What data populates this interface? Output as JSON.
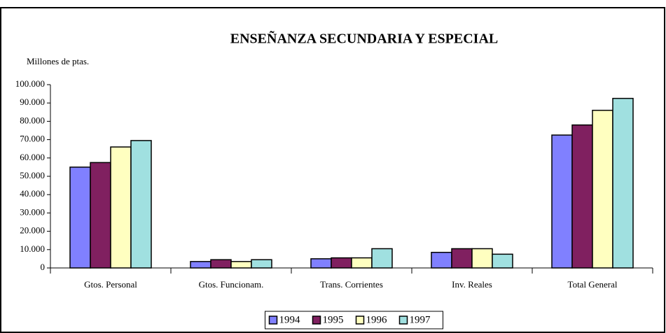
{
  "chart_data": {
    "type": "bar",
    "title": "ENSEÑANZA SECUNDARIA Y ESPECIAL",
    "y_label": "Millones de ptas.",
    "categories": [
      "Gtos. Personal",
      "Gtos. Funcionam.",
      "Trans. Corrientes",
      "Inv. Reales",
      "Total General"
    ],
    "series": [
      {
        "name": "1994",
        "color": "#8080ff",
        "values": [
          55000,
          3500,
          5000,
          8500,
          72500
        ]
      },
      {
        "name": "1995",
        "color": "#802060",
        "values": [
          57500,
          4500,
          5500,
          10500,
          78000
        ]
      },
      {
        "name": "1996",
        "color": "#ffffc0",
        "values": [
          66000,
          3500,
          5500,
          10500,
          86000
        ]
      },
      {
        "name": "1997",
        "color": "#a0e0e0",
        "values": [
          69500,
          4500,
          10500,
          7500,
          92500
        ]
      }
    ],
    "ylim": [
      0,
      100000
    ],
    "yticks": [
      0,
      {
        "value": 10000,
        "label": "10.000"
      },
      {
        "value": 20000,
        "label": "20.000"
      },
      {
        "value": 30000,
        "label": "30.000"
      },
      {
        "value": 40000,
        "label": "40.000"
      },
      {
        "value": 50000,
        "label": "50.000"
      },
      {
        "value": 60000,
        "label": "60.000"
      },
      {
        "value": 70000,
        "label": "70.000"
      },
      {
        "value": 80000,
        "label": "80.000"
      },
      {
        "value": 90000,
        "label": "90.000"
      },
      {
        "value": 100000,
        "label": "100.000"
      }
    ],
    "legend": "bottom"
  }
}
